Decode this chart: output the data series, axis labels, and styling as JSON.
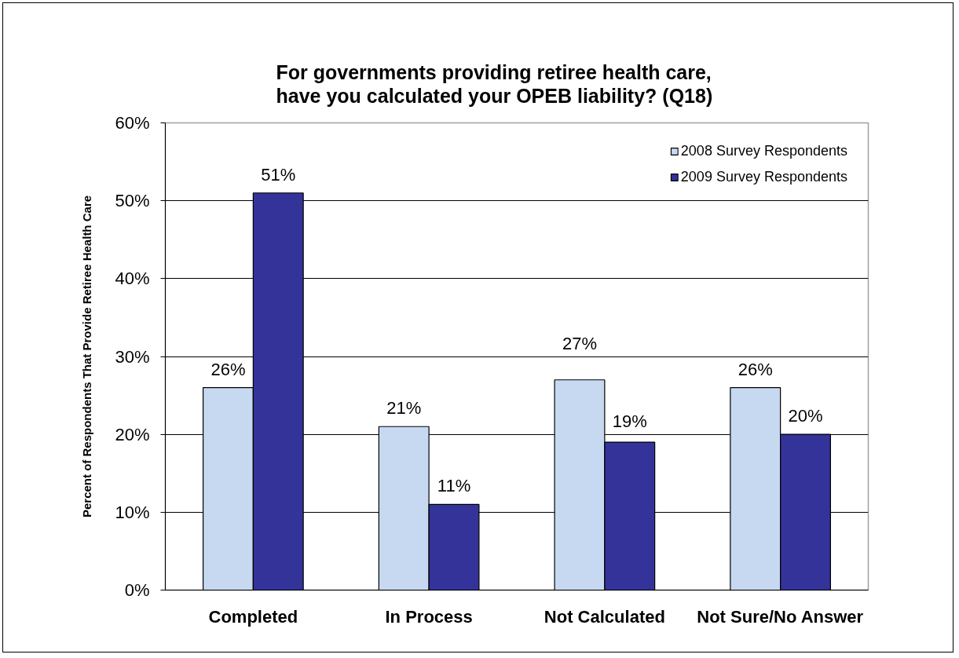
{
  "chart_data": {
    "type": "bar",
    "title": "For governments providing retiree health care,\nhave you calculated your OPEB liability? (Q18)",
    "ylabel": "Percent of Respondents That Provide Retiree Health Care",
    "categories": [
      "Completed",
      "In Process",
      "Not Calculated",
      "Not Sure/No Answer"
    ],
    "series": [
      {
        "name": "2008 Survey Respondents",
        "color": "#c6d9f0",
        "values": [
          26,
          21,
          27,
          26
        ],
        "value_labels": [
          "26%",
          "21%",
          "27%",
          "26%"
        ]
      },
      {
        "name": "2009 Survey Respondents",
        "color": "#333399",
        "values": [
          51,
          11,
          19,
          20
        ],
        "value_labels": [
          "51%",
          "11%",
          "19%",
          "20%"
        ]
      }
    ],
    "ylim": [
      0,
      60
    ],
    "yticks": [
      {
        "value": 0,
        "label": "0%"
      },
      {
        "value": 10,
        "label": "10%"
      },
      {
        "value": 20,
        "label": "20%"
      },
      {
        "value": 30,
        "label": "30%"
      },
      {
        "value": 40,
        "label": "40%"
      },
      {
        "value": 50,
        "label": "50%"
      },
      {
        "value": 60,
        "label": "60%"
      }
    ],
    "grid": "y",
    "legend": "top right"
  }
}
